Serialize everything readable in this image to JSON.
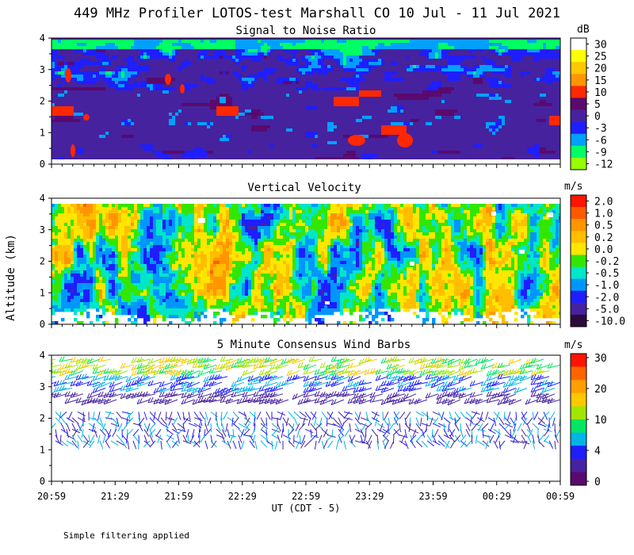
{
  "figure": {
    "title": "449 MHz Profiler LOTOS-test Marshall CO 10 Jul - 11 Jul 2021",
    "ylabel": "Altitude (km)",
    "xlabel": "UT  (CDT - 5)",
    "x_ticks": [
      "20:59",
      "21:29",
      "21:59",
      "22:29",
      "22:59",
      "23:29",
      "23:59",
      "00:29",
      "00:59"
    ],
    "footnote": "Simple filtering applied"
  },
  "chart_data": [
    {
      "type": "heatmap",
      "title": "Signal to Noise Ratio",
      "units": "dB",
      "ylim": [
        0,
        4
      ],
      "y_ticks": [
        "0",
        "1",
        "2",
        "3",
        "4"
      ],
      "colorbar_labels": [
        "30",
        "25",
        "20",
        "15",
        "10",
        "5",
        "0",
        "-3",
        "-6",
        "-9",
        "-12"
      ],
      "colorbar_colors": [
        "#ffffff",
        "#ffff00",
        "#ffc800",
        "#ff9600",
        "#ff2800",
        "#5a0a6e",
        "#46229e",
        "#1e1eff",
        "#00a0ff",
        "#00ff64",
        "#96ff00"
      ],
      "background_color": "#46229e"
    },
    {
      "type": "heatmap",
      "title": "Vertical Velocity",
      "units": "m/s",
      "ylim": [
        0,
        4
      ],
      "y_ticks": [
        "0",
        "1",
        "2",
        "3",
        "4"
      ],
      "colorbar_labels": [
        "2.0",
        "1.0",
        "0.5",
        "0.2",
        "0.0",
        "-0.2",
        "-0.5",
        "-1.0",
        "-2.0",
        "-5.0",
        "-10.0"
      ],
      "colorbar_colors": [
        "#ff1400",
        "#ff5a00",
        "#ff9600",
        "#ffbe00",
        "#ffe600",
        "#32e600",
        "#00e6c8",
        "#0096ff",
        "#1e1eff",
        "#46229e",
        "#2d0a3c"
      ]
    },
    {
      "type": "scatter",
      "title": "5 Minute Consensus Wind Barbs",
      "units": "m/s",
      "ylim": [
        0,
        4
      ],
      "y_ticks": [
        "0",
        "1",
        "2",
        "3",
        "4"
      ],
      "colorbar_labels": [
        "30",
        "20",
        "10",
        "4",
        "0"
      ],
      "colorbar_colors": [
        "#ff1400",
        "#ff6400",
        "#ffa000",
        "#ffc800",
        "#a0e600",
        "#00e664",
        "#00b4e6",
        "#1e1eff",
        "#46229e",
        "#5a0a6e"
      ]
    }
  ]
}
